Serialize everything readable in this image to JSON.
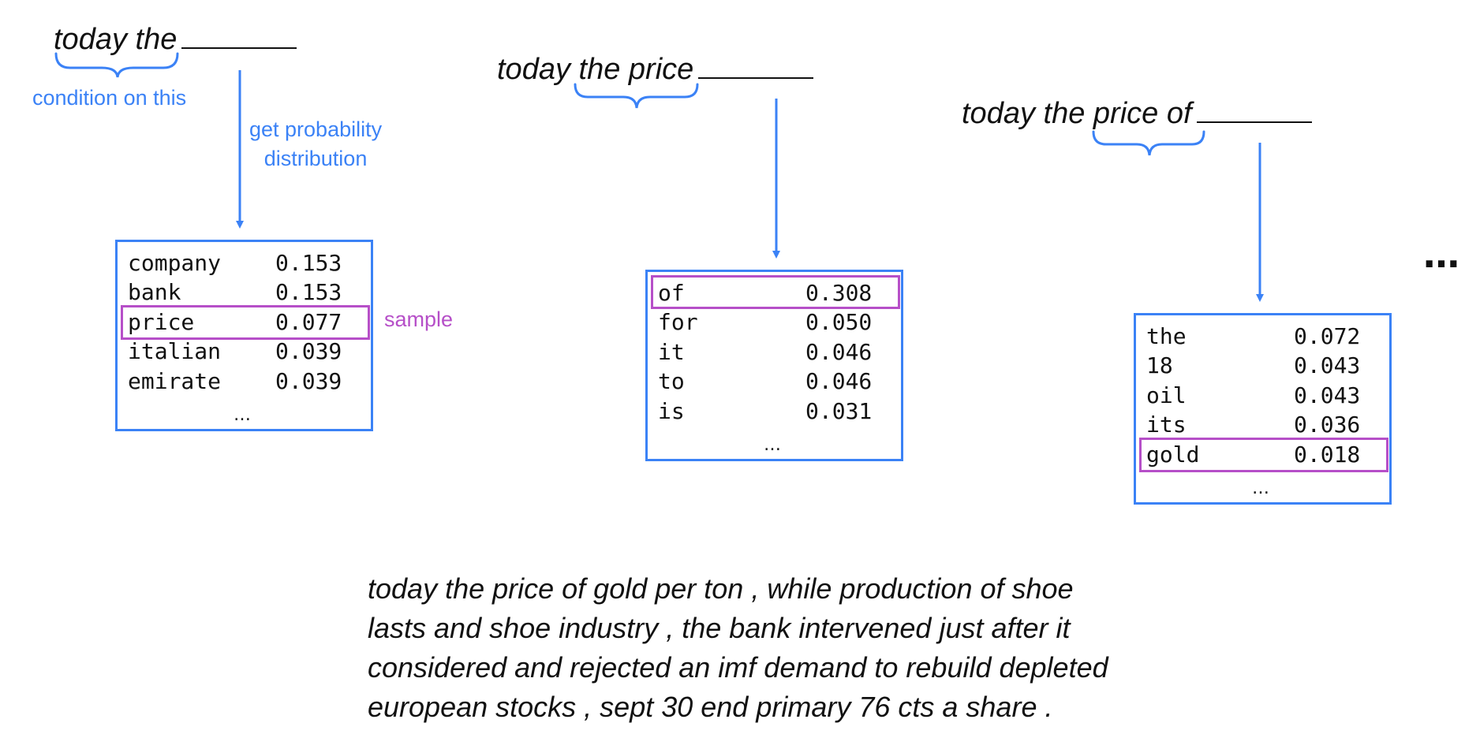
{
  "steps": [
    {
      "prompt": "today the",
      "condition_label": "condition on this",
      "get_dist_label": [
        "get probability",
        "distribution"
      ],
      "sample_label": "sample",
      "table": {
        "rows": [
          {
            "word": "company",
            "prob": "0.153"
          },
          {
            "word": "bank",
            "prob": "0.153"
          },
          {
            "word": "price",
            "prob": "0.077",
            "sampled": true
          },
          {
            "word": "italian",
            "prob": "0.039"
          },
          {
            "word": "emirate",
            "prob": "0.039"
          }
        ],
        "more": "…"
      }
    },
    {
      "prompt": "today the price",
      "table": {
        "rows": [
          {
            "word": "of",
            "prob": "0.308",
            "sampled": true
          },
          {
            "word": "for",
            "prob": "0.050"
          },
          {
            "word": "it",
            "prob": "0.046"
          },
          {
            "word": "to",
            "prob": "0.046"
          },
          {
            "word": "is",
            "prob": "0.031"
          }
        ],
        "more": "…"
      }
    },
    {
      "prompt": "today the price of",
      "table": {
        "rows": [
          {
            "word": "the",
            "prob": "0.072"
          },
          {
            "word": "18",
            "prob": "0.043"
          },
          {
            "word": "oil",
            "prob": "0.043"
          },
          {
            "word": "its",
            "prob": "0.036"
          },
          {
            "word": "gold",
            "prob": "0.018",
            "sampled": true
          }
        ],
        "more": "…"
      }
    }
  ],
  "continuation": "…",
  "generated_text": [
    "today the price of gold per ton , while production of shoe",
    "lasts and shoe industry , the bank intervened just after it",
    "considered and rejected an imf demand to rebuild depleted",
    "european stocks , sept 30 end primary 76 cts a share ."
  ],
  "colors": {
    "accent": "#3b82f6",
    "sample": "#b64fc8",
    "text": "#111111"
  }
}
